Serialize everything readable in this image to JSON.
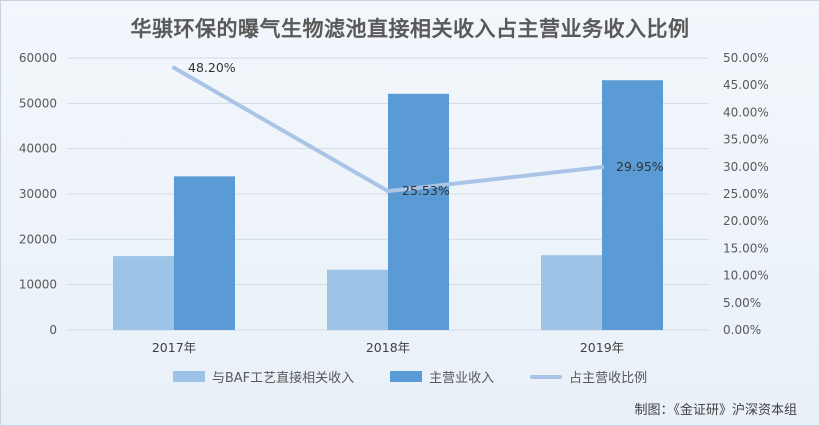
{
  "chart_data": {
    "type": "bar",
    "title": "华骐环保的曝气生物滤池直接相关收入占主营业务收入比例",
    "categories": [
      "2017年",
      "2018年",
      "2019年"
    ],
    "series": [
      {
        "name": "与BAF工艺直接相关收入",
        "type": "bar",
        "axis": "left",
        "values": [
          16300,
          13300,
          16500
        ],
        "color": "#9dc3e6"
      },
      {
        "name": "主营业收入",
        "type": "bar",
        "axis": "left",
        "values": [
          33900,
          52100,
          55100
        ],
        "color": "#5b9bd5"
      },
      {
        "name": "占主营收比例",
        "type": "line",
        "axis": "right",
        "values": [
          48.2,
          25.53,
          29.95
        ],
        "labels": [
          "48.20%",
          "25.53%",
          "29.95%"
        ],
        "color": "#a9c4e6"
      }
    ],
    "ylim": [
      0,
      60000
    ],
    "yticks": [
      "0",
      "10000",
      "20000",
      "30000",
      "40000",
      "50000",
      "60000"
    ],
    "y2lim": [
      0,
      50
    ],
    "y2ticks": [
      "0.00%",
      "5.00%",
      "10.00%",
      "15.00%",
      "20.00%",
      "25.00%",
      "30.00%",
      "35.00%",
      "40.00%",
      "45.00%",
      "50.00%"
    ],
    "grid": true,
    "legend_position": "bottom",
    "source": "制图：《金证研》沪深资本组"
  }
}
